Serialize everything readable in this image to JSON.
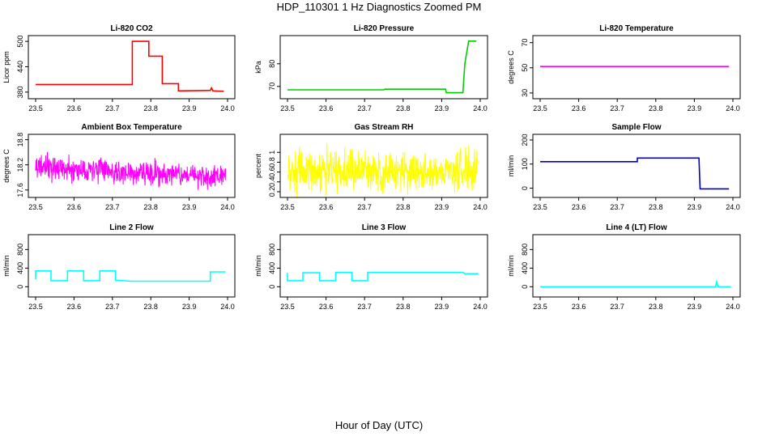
{
  "figure": {
    "title": "HDP_110301  1 Hz Diagnostics Zoomed PM",
    "xlabel": "Hour of Day (UTC)"
  },
  "chart_data": [
    {
      "type": "line",
      "title": "Li-820 CO2",
      "ylabel": "Licor ppm",
      "xlim": [
        23.5,
        24.0
      ],
      "ylim": [
        372,
        506
      ],
      "xticks": [
        "23.5",
        "23.6",
        "23.7",
        "23.8",
        "23.9",
        "24.0"
      ],
      "yticks": [
        380,
        440,
        500
      ],
      "color": "#ff0000",
      "series": [
        {
          "x": [
            23.5,
            23.752,
            23.752,
            23.795,
            23.795,
            23.83,
            23.83,
            23.872,
            23.872,
            23.955,
            23.958,
            23.962,
            23.99
          ],
          "values": [
            398,
            398,
            500,
            500,
            465,
            465,
            400,
            400,
            383,
            384,
            390,
            383,
            382
          ]
        }
      ]
    },
    {
      "type": "line",
      "title": "Li-820 Pressure",
      "ylabel": "kPa",
      "xlim": [
        23.5,
        24.0
      ],
      "ylim": [
        66,
        91
      ],
      "xticks": [
        "23.5",
        "23.6",
        "23.7",
        "23.8",
        "23.9",
        "24.0"
      ],
      "yticks": [
        70,
        80
      ],
      "color": "#00cd00",
      "series": [
        {
          "x": [
            23.5,
            23.75,
            23.752,
            23.91,
            23.912,
            23.955,
            23.96,
            23.97,
            23.99
          ],
          "values": [
            68.5,
            68.5,
            68.8,
            68.8,
            67.2,
            67.2,
            80,
            90,
            90
          ]
        }
      ]
    },
    {
      "type": "line",
      "title": "Li-820 Temperature",
      "ylabel": "degrees C",
      "xlim": [
        23.5,
        24.0
      ],
      "ylim": [
        28,
        73
      ],
      "xticks": [
        "23.5",
        "23.6",
        "23.7",
        "23.8",
        "23.9",
        "24.0"
      ],
      "yticks": [
        30,
        50,
        70
      ],
      "color": "#ff00ff",
      "series": [
        {
          "x": [
            23.5,
            23.99
          ],
          "values": [
            51,
            51
          ]
        }
      ]
    },
    {
      "type": "line",
      "title": "Ambient Box Temperature",
      "ylabel": "degrees C",
      "xlim": [
        23.5,
        24.0
      ],
      "ylim": [
        17.5,
        18.85
      ],
      "xticks": [
        "23.5",
        "23.6",
        "23.7",
        "23.8",
        "23.9",
        "24.0"
      ],
      "yticks": [
        17.6,
        18.2,
        18.8
      ],
      "color": "#ff00ff",
      "noise": {
        "center_start": 18.15,
        "center_end": 17.9,
        "amplitude": 0.28,
        "n": 600
      }
    },
    {
      "type": "line",
      "title": "Gas Stream RH",
      "ylabel": "percent",
      "xlim": [
        23.5,
        24.0
      ],
      "ylim": [
        0.15,
        1.3
      ],
      "xticks": [
        "23.5",
        "23.6",
        "23.7",
        "23.8",
        "23.9",
        "24.0"
      ],
      "yticks": [
        0.2,
        0.4,
        0.6,
        0.8,
        1.0
      ],
      "color": "#ffff00",
      "noise": {
        "center_start": 0.62,
        "center_end": 0.62,
        "amplitude": 0.4,
        "n": 600
      }
    },
    {
      "type": "line",
      "title": "Sample Flow",
      "ylabel": "ml/min",
      "xlim": [
        23.5,
        24.0
      ],
      "ylim": [
        -25,
        210
      ],
      "xticks": [
        "23.5",
        "23.6",
        "23.7",
        "23.8",
        "23.9",
        "24.0"
      ],
      "yticks": [
        0,
        100,
        200
      ],
      "color": "#0000cd",
      "series": [
        {
          "x": [
            23.5,
            23.752,
            23.752,
            23.912,
            23.915,
            23.99
          ],
          "values": [
            110,
            110,
            125,
            125,
            -3,
            -3
          ]
        }
      ]
    },
    {
      "type": "line",
      "title": "Line 2 Flow",
      "ylabel": "ml/min",
      "xlim": [
        23.5,
        24.0
      ],
      "ylim": [
        -150,
        1050
      ],
      "xticks": [
        "23.5",
        "23.6",
        "23.7",
        "23.8",
        "23.9",
        "24.0"
      ],
      "yticks": [
        0,
        400,
        800
      ],
      "color": "#00ffff",
      "series": [
        {
          "x": [
            23.5,
            23.5,
            23.54,
            23.54,
            23.583,
            23.583,
            23.625,
            23.625,
            23.667,
            23.667,
            23.708,
            23.708,
            23.75,
            23.955,
            23.955,
            23.995
          ],
          "values": [
            160,
            340,
            340,
            130,
            130,
            340,
            340,
            130,
            130,
            340,
            340,
            140,
            120,
            120,
            320,
            320
          ]
        }
      ]
    },
    {
      "type": "line",
      "title": "Line 3 Flow",
      "ylabel": "ml/min",
      "xlim": [
        23.5,
        24.0
      ],
      "ylim": [
        -150,
        1050
      ],
      "xticks": [
        "23.5",
        "23.6",
        "23.7",
        "23.8",
        "23.9",
        "24.0"
      ],
      "yticks": [
        0,
        400,
        800
      ],
      "color": "#00ffff",
      "series": [
        {
          "x": [
            23.5,
            23.5,
            23.54,
            23.54,
            23.583,
            23.583,
            23.625,
            23.625,
            23.667,
            23.667,
            23.708,
            23.708,
            23.955,
            23.96,
            23.995
          ],
          "values": [
            300,
            130,
            130,
            300,
            300,
            130,
            130,
            310,
            310,
            130,
            130,
            310,
            310,
            280,
            280
          ]
        }
      ]
    },
    {
      "type": "line",
      "title": "Line 4 (LT) Flow",
      "ylabel": "ml/min",
      "xlim": [
        23.5,
        24.0
      ],
      "ylim": [
        -150,
        1050
      ],
      "xticks": [
        "23.5",
        "23.6",
        "23.7",
        "23.8",
        "23.9",
        "24.0"
      ],
      "yticks": [
        0,
        400,
        800
      ],
      "color": "#00ffff",
      "series": [
        {
          "x": [
            23.5,
            23.955,
            23.957,
            23.958,
            23.96,
            23.962,
            23.995
          ],
          "values": [
            0,
            0,
            80,
            110,
            50,
            0,
            0
          ]
        }
      ]
    }
  ]
}
